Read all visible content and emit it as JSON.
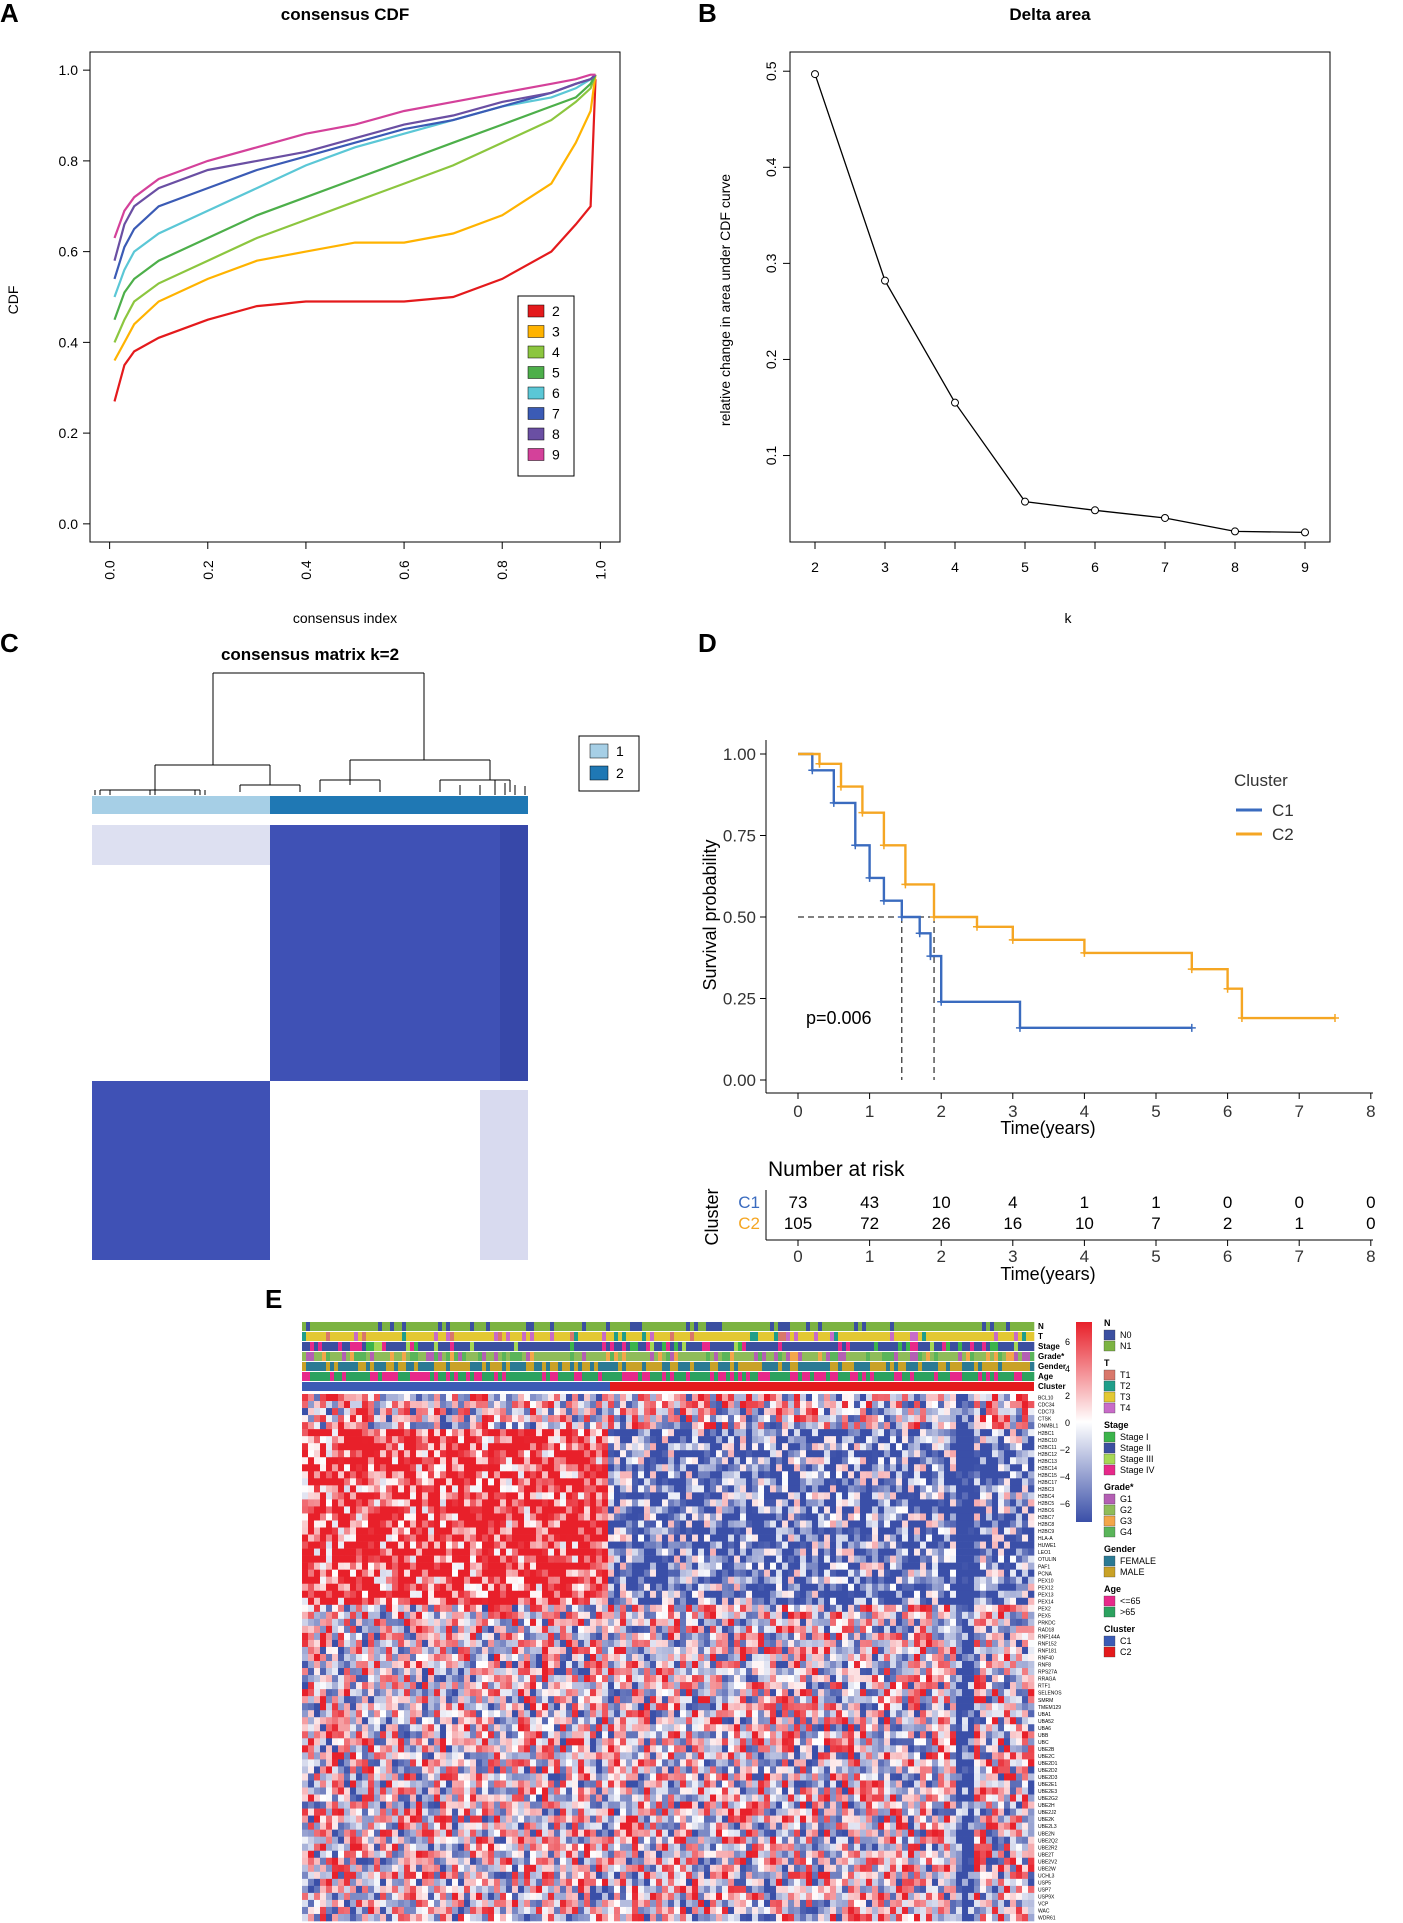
{
  "panels": {
    "A": {
      "letter": "A",
      "title": "consensus CDF",
      "xlabel": "consensus index",
      "ylabel": "CDF",
      "xticks": [
        "0.0",
        "0.2",
        "0.4",
        "0.6",
        "0.8",
        "1.0"
      ],
      "yticks": [
        "0.0",
        "0.2",
        "0.4",
        "0.6",
        "0.8",
        "1.0"
      ]
    },
    "B": {
      "letter": "B",
      "title": "Delta area",
      "xlabel": "k",
      "ylabel": "relative change in area under CDF curve",
      "xticks": [
        "2",
        "3",
        "4",
        "5",
        "6",
        "7",
        "8",
        "9"
      ],
      "yticks": [
        "0.1",
        "0.2",
        "0.3",
        "0.4",
        "0.5"
      ]
    },
    "C": {
      "letter": "C",
      "title": "consensus matrix k=2"
    },
    "D": {
      "letter": "D",
      "ylabel": "Survival probability",
      "xlabel": "Time(years)",
      "pvalue": "p=0.006",
      "xticks": [
        "0",
        "1",
        "2",
        "3",
        "4",
        "5",
        "6",
        "7",
        "8"
      ],
      "yticks": [
        "0.00",
        "0.25",
        "0.50",
        "0.75",
        "1.00"
      ],
      "risk_title": "Number at risk",
      "risk_ylabel": "Cluster",
      "risk_xlabel": "Time(years)"
    },
    "E": {
      "letter": "E"
    }
  },
  "chart_data": [
    {
      "id": "A",
      "type": "line",
      "title": "consensus CDF",
      "xlabel": "consensus index",
      "ylabel": "CDF",
      "xlim": [
        0,
        1
      ],
      "ylim": [
        0,
        1
      ],
      "x": [
        0.01,
        0.03,
        0.05,
        0.1,
        0.2,
        0.3,
        0.4,
        0.5,
        0.6,
        0.7,
        0.8,
        0.9,
        0.95,
        0.98,
        0.99
      ],
      "series": [
        {
          "name": "2",
          "color": "#e41a1c",
          "values": [
            0.27,
            0.35,
            0.38,
            0.41,
            0.45,
            0.48,
            0.49,
            0.49,
            0.49,
            0.5,
            0.54,
            0.6,
            0.66,
            0.7,
            0.98
          ]
        },
        {
          "name": "3",
          "color": "#ffb300",
          "values": [
            0.36,
            0.4,
            0.44,
            0.49,
            0.54,
            0.58,
            0.6,
            0.62,
            0.62,
            0.64,
            0.68,
            0.75,
            0.84,
            0.91,
            0.99
          ]
        },
        {
          "name": "4",
          "color": "#8cc63f",
          "values": [
            0.4,
            0.45,
            0.49,
            0.53,
            0.58,
            0.63,
            0.67,
            0.71,
            0.75,
            0.79,
            0.84,
            0.89,
            0.93,
            0.96,
            0.99
          ]
        },
        {
          "name": "5",
          "color": "#4daf4a",
          "values": [
            0.45,
            0.51,
            0.54,
            0.58,
            0.63,
            0.68,
            0.72,
            0.76,
            0.8,
            0.84,
            0.88,
            0.92,
            0.94,
            0.97,
            0.99
          ]
        },
        {
          "name": "6",
          "color": "#5bc7d6",
          "values": [
            0.5,
            0.56,
            0.6,
            0.64,
            0.69,
            0.74,
            0.79,
            0.83,
            0.86,
            0.89,
            0.92,
            0.94,
            0.96,
            0.98,
            0.99
          ]
        },
        {
          "name": "7",
          "color": "#3b5bb5",
          "values": [
            0.54,
            0.61,
            0.65,
            0.7,
            0.74,
            0.78,
            0.81,
            0.84,
            0.87,
            0.89,
            0.92,
            0.95,
            0.97,
            0.98,
            0.99
          ]
        },
        {
          "name": "8",
          "color": "#6a4fa3",
          "values": [
            0.58,
            0.66,
            0.7,
            0.74,
            0.78,
            0.8,
            0.82,
            0.85,
            0.88,
            0.9,
            0.93,
            0.95,
            0.97,
            0.98,
            0.99
          ]
        },
        {
          "name": "9",
          "color": "#d4419a",
          "values": [
            0.63,
            0.69,
            0.72,
            0.76,
            0.8,
            0.83,
            0.86,
            0.88,
            0.91,
            0.93,
            0.95,
            0.97,
            0.98,
            0.99,
            0.99
          ]
        }
      ],
      "legend": "right-center"
    },
    {
      "id": "B",
      "type": "line",
      "title": "Delta area",
      "xlabel": "k",
      "ylabel": "relative change in area under CDF curve",
      "x": [
        2,
        3,
        4,
        5,
        6,
        7,
        8,
        9
      ],
      "ylim": [
        0.01,
        0.52
      ],
      "values": [
        0.497,
        0.282,
        0.155,
        0.052,
        0.043,
        0.035,
        0.021,
        0.02
      ]
    },
    {
      "id": "C",
      "type": "heatmap",
      "title": "consensus matrix k=2",
      "clusters": [
        {
          "name": "1",
          "color": "#9ecae1"
        },
        {
          "name": "2",
          "color": "#1f78b4"
        }
      ],
      "block_color": "#3f51b5",
      "legend": "top-right"
    },
    {
      "id": "D",
      "type": "line",
      "subtype": "kaplan-meier",
      "xlabel": "Time(years)",
      "ylabel": "Survival probability",
      "xlim": [
        0,
        8
      ],
      "ylim": [
        0,
        1
      ],
      "legend_title": "Cluster",
      "series": [
        {
          "name": "C1",
          "color": "#3a6bbf",
          "x": [
            0,
            0.2,
            0.5,
            0.8,
            1.0,
            1.2,
            1.45,
            1.7,
            1.85,
            2.0,
            3.1,
            5.5
          ],
          "values": [
            1.0,
            0.95,
            0.85,
            0.72,
            0.62,
            0.55,
            0.5,
            0.45,
            0.38,
            0.24,
            0.16,
            0.16
          ]
        },
        {
          "name": "C2",
          "color": "#f5a623",
          "x": [
            0,
            0.3,
            0.6,
            0.9,
            1.2,
            1.5,
            1.9,
            2.5,
            3.0,
            4.0,
            5.5,
            6.0,
            6.2,
            7.5
          ],
          "values": [
            1.0,
            0.97,
            0.9,
            0.82,
            0.72,
            0.6,
            0.5,
            0.47,
            0.43,
            0.39,
            0.34,
            0.28,
            0.19,
            0.19
          ]
        }
      ],
      "median_survival": {
        "C1": 1.45,
        "C2": 1.9
      },
      "pvalue": "p=0.006"
    },
    {
      "id": "D-risk",
      "type": "table",
      "title": "Number at risk",
      "columns": [
        "0",
        "1",
        "2",
        "3",
        "4",
        "5",
        "6",
        "7",
        "8"
      ],
      "rows": [
        {
          "name": "C1",
          "color": "#3a6bbf",
          "values": [
            "73",
            "43",
            "10",
            "4",
            "1",
            "1",
            "0",
            "0",
            "0"
          ]
        },
        {
          "name": "C2",
          "color": "#f5a623",
          "values": [
            "105",
            "72",
            "26",
            "16",
            "10",
            "7",
            "2",
            "1",
            "0"
          ]
        }
      ]
    },
    {
      "id": "E",
      "type": "heatmap",
      "annotation_tracks": [
        "N",
        "T",
        "Stage",
        "Grade*",
        "Gender",
        "Age",
        "Cluster"
      ],
      "color_scale": {
        "ticks": [
          "6",
          "4",
          "2",
          "0",
          "−2",
          "−4",
          "−6"
        ],
        "low": "#3a4fa8",
        "mid": "#ffffff",
        "high": "#e8202a"
      },
      "legend_groups": [
        {
          "title": "N",
          "items": [
            {
              "label": "N0",
              "color": "#3b4fa0"
            },
            {
              "label": "N1",
              "color": "#7cb342"
            }
          ]
        },
        {
          "title": "T",
          "items": [
            {
              "label": "T1",
              "color": "#d9776a"
            },
            {
              "label": "T2",
              "color": "#1f9e89"
            },
            {
              "label": "T3",
              "color": "#e3c832"
            },
            {
              "label": "T4",
              "color": "#c86bc8"
            }
          ]
        },
        {
          "title": "Stage",
          "items": [
            {
              "label": "Stage I",
              "color": "#3cb44b"
            },
            {
              "label": "Stage II",
              "color": "#3b4fa0"
            },
            {
              "label": "Stage III",
              "color": "#a6d854"
            },
            {
              "label": "Stage IV",
              "color": "#e7298a"
            }
          ]
        },
        {
          "title": "Grade*",
          "items": [
            {
              "label": "G1",
              "color": "#b45fb4"
            },
            {
              "label": "G2",
              "color": "#8fbc5a"
            },
            {
              "label": "G3",
              "color": "#f3a64a"
            },
            {
              "label": "G4",
              "color": "#5ab55a"
            }
          ]
        },
        {
          "title": "Gender",
          "items": [
            {
              "label": "FEMALE",
              "color": "#2b7a94"
            },
            {
              "label": "MALE",
              "color": "#c9a227"
            }
          ]
        },
        {
          "title": "Age",
          "items": [
            {
              "label": "<=65",
              "color": "#e7298a"
            },
            {
              "label": ">65",
              "color": "#2ca25f"
            }
          ]
        },
        {
          "title": "Cluster",
          "items": [
            {
              "label": "C1",
              "color": "#3b5bb5"
            },
            {
              "label": "C2",
              "color": "#e41a1c"
            }
          ]
        }
      ],
      "row_labels": [
        "BCL10",
        "CDC34",
        "CDC73",
        "CTSK",
        "DNMBL1",
        "H2BC1",
        "H2BC10",
        "H2BC11",
        "H2BC12",
        "H2BC13",
        "H2BC14",
        "H2BC15",
        "H2BC17",
        "H2BC3",
        "H2BC4",
        "H2BC5",
        "H2BC6",
        "H2BC7",
        "H2BC8",
        "H2BC9",
        "HLA-A",
        "HUWE1",
        "LEO1",
        "OTULIN",
        "PAF1",
        "PCNA",
        "PEX10",
        "PEX12",
        "PEX13",
        "PEX14",
        "PEX2",
        "PEX5",
        "PRKDC",
        "RAD18",
        "RNF144A",
        "RNF152",
        "RNF181",
        "RNF40",
        "RNF8",
        "RPS27A",
        "RRAGA",
        "RTF1",
        "SELENOS",
        "SMRM",
        "TMEM129",
        "UBA1",
        "UBA52",
        "UBA6",
        "UBB",
        "UBC",
        "UBE2B",
        "UBE2C",
        "UBE2D1",
        "UBE2D2",
        "UBE2D3",
        "UBE2E1",
        "UBE2E3",
        "UBE2G2",
        "UBE2H",
        "UBE2J2",
        "UBE2K",
        "UBE2L3",
        "UBE2N",
        "UBE2Q2",
        "UBE2R2",
        "UBE2T",
        "UBE2V2",
        "UBE2W",
        "UCHL3",
        "USP5",
        "USP7",
        "USP9X",
        "VCP",
        "WAC",
        "WDR61"
      ]
    }
  ]
}
